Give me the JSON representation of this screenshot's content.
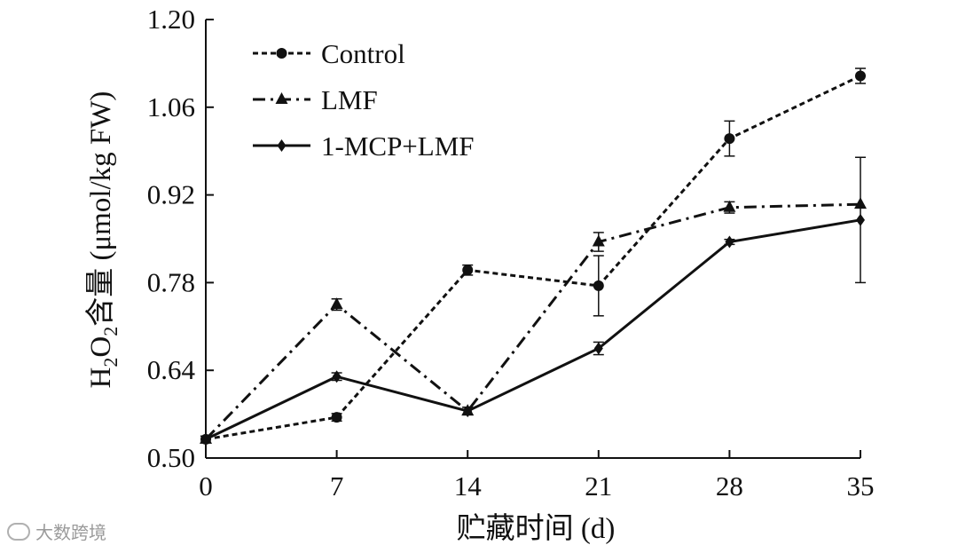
{
  "chart_data": {
    "type": "line",
    "title": "",
    "xlabel": "贮藏时间 (d)",
    "ylabel_parts": {
      "h": "H",
      "sub1": "2",
      "o": "O",
      "sub2": "2",
      "rest": "含量 (μmol/kg FW)"
    },
    "x": [
      0,
      7,
      14,
      21,
      28,
      35
    ],
    "xlim": [
      0,
      35
    ],
    "ylim": [
      0.5,
      1.2
    ],
    "yticks": [
      0.5,
      0.64,
      0.78,
      0.92,
      1.06,
      1.2
    ],
    "ytick_labels": [
      "0.50",
      "0.64",
      "0.78",
      "0.92",
      "1.06",
      "1.20"
    ],
    "xtick_labels": [
      "0",
      "7",
      "14",
      "21",
      "28",
      "35"
    ],
    "legend_position": "top-left",
    "series": [
      {
        "name": "Control",
        "values": [
          0.53,
          0.565,
          0.8,
          0.775,
          1.01,
          1.11
        ],
        "errors": [
          0.005,
          0.006,
          0.008,
          0.048,
          0.028,
          0.012
        ],
        "marker": "circle",
        "dash": "dotted"
      },
      {
        "name": "LMF",
        "values": [
          0.53,
          0.745,
          0.575,
          0.845,
          0.9,
          0.905
        ],
        "errors": [
          0.005,
          0.009,
          0.006,
          0.015,
          0.009,
          0.0
        ],
        "marker": "triangle",
        "dash": "dashdot"
      },
      {
        "name": "1-MCP+LMF",
        "values": [
          0.53,
          0.63,
          0.575,
          0.675,
          0.845,
          0.88
        ],
        "errors": [
          0.005,
          0.006,
          0.006,
          0.01,
          0.004,
          0.1
        ],
        "marker": "diamond",
        "dash": "solid"
      }
    ]
  },
  "watermark": {
    "text": "大数跨境"
  }
}
